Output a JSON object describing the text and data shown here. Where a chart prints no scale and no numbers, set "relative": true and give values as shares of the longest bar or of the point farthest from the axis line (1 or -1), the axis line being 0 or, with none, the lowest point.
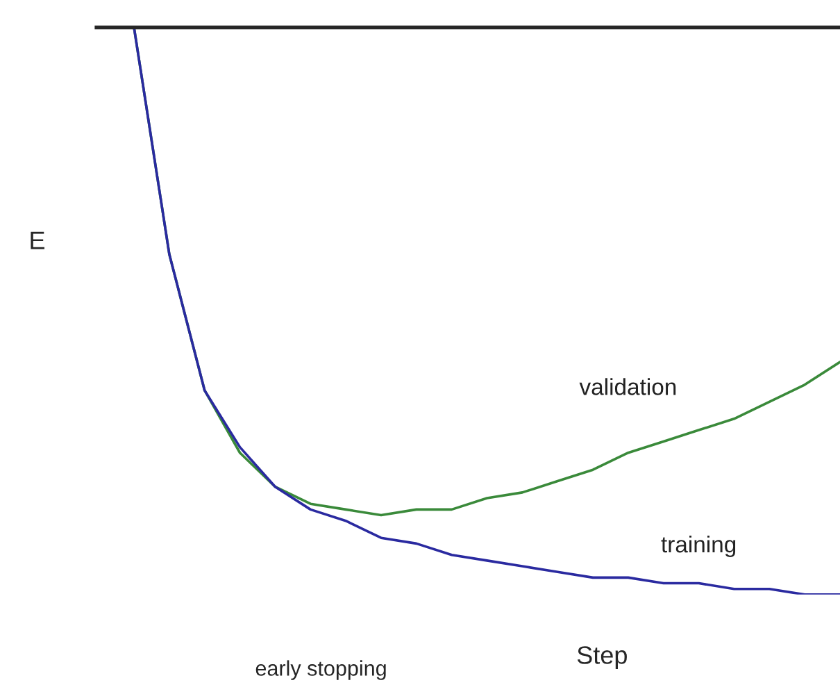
{
  "chart_data": {
    "type": "line",
    "relative": true,
    "xlabel": "Step",
    "ylabel": "E",
    "categories": [
      null,
      null,
      null,
      null,
      null,
      null,
      null,
      null,
      null,
      null,
      null,
      null,
      null,
      null,
      null,
      null,
      null,
      null,
      null,
      null,
      null
    ],
    "series": [
      {
        "name": "validation",
        "color": "#3a8a3a",
        "values": [
          1.0,
          0.6,
          0.36,
          0.25,
          0.19,
          0.16,
          0.15,
          0.14,
          0.15,
          0.15,
          0.17,
          0.18,
          0.2,
          0.22,
          0.25,
          0.27,
          0.29,
          0.31,
          0.34,
          0.37,
          0.41
        ]
      },
      {
        "name": "training",
        "color": "#2a2aa0",
        "values": [
          1.0,
          0.6,
          0.36,
          0.26,
          0.19,
          0.15,
          0.13,
          0.1,
          0.09,
          0.07,
          0.06,
          0.05,
          0.04,
          0.03,
          0.03,
          0.02,
          0.02,
          0.01,
          0.01,
          0.0,
          0.0
        ]
      }
    ],
    "annotations": [
      "early stopping"
    ],
    "marker": "none",
    "line_style": "solid"
  }
}
